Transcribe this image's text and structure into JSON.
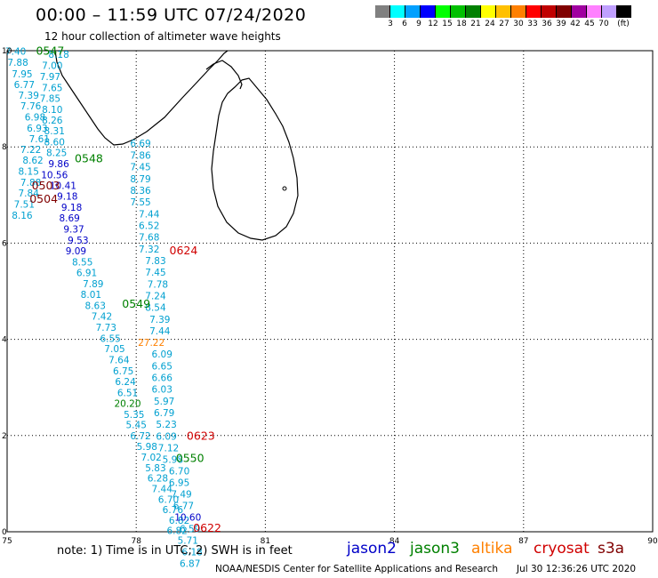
{
  "title": "00:00 – 11:59 UTC 07/24/2020",
  "subtitle": "12 hour collection of altimeter wave heights",
  "colorbar": {
    "unit": "(ft)",
    "levels": [
      "3",
      "6",
      "9",
      "12",
      "15",
      "18",
      "21",
      "24",
      "27",
      "30",
      "33",
      "36",
      "39",
      "42",
      "45",
      "70"
    ],
    "colors": [
      "#808080",
      "#00ffff",
      "#00a0ff",
      "#0000ff",
      "#00ff00",
      "#00c000",
      "#008000",
      "#ffff00",
      "#ffc000",
      "#ff8000",
      "#ff0000",
      "#c00000",
      "#800000",
      "#a000a0",
      "#ff80ff",
      "#c0a0ff",
      "#000000"
    ]
  },
  "axes": {
    "x_ticks": [
      "75",
      "78",
      "81",
      "84",
      "87",
      "90"
    ],
    "y_ticks": [
      "10",
      "8",
      "6",
      "4",
      "2",
      "0"
    ],
    "xlim": [
      75,
      90
    ],
    "ylim": [
      0,
      10
    ]
  },
  "satellite_colors": {
    "jason2": "#0000c8",
    "jason3": "#008000",
    "altika": "#ff8000",
    "cryosat": "#d00000",
    "s3a": "#800000",
    "default": "#00a0d0"
  },
  "pass_times": [
    {
      "text": "0547",
      "lon": 76.0,
      "lat": 9.92,
      "sat": "jason3"
    },
    {
      "text": "0548",
      "lon": 76.9,
      "lat": 7.68,
      "sat": "jason3"
    },
    {
      "text": "0503",
      "lon": 75.9,
      "lat": 7.12,
      "sat": "s3a"
    },
    {
      "text": "0504",
      "lon": 75.85,
      "lat": 6.84,
      "sat": "s3a"
    },
    {
      "text": "0624",
      "lon": 79.1,
      "lat": 5.77,
      "sat": "cryosat"
    },
    {
      "text": "0549",
      "lon": 78.0,
      "lat": 4.66,
      "sat": "jason3"
    },
    {
      "text": "0623",
      "lon": 79.5,
      "lat": 1.91,
      "sat": "cryosat"
    },
    {
      "text": "0550",
      "lon": 79.25,
      "lat": 1.45,
      "sat": "jason3"
    },
    {
      "text": "0622",
      "lon": 79.65,
      "lat": 0.0,
      "sat": "cryosat"
    }
  ],
  "wave_heights": [
    {
      "v": "7.40",
      "lon": 75.2,
      "lat": 9.92,
      "sat": "default"
    },
    {
      "v": "7.88",
      "lon": 75.25,
      "lat": 9.69,
      "sat": "default"
    },
    {
      "v": "7.95",
      "lon": 75.35,
      "lat": 9.45,
      "sat": "default"
    },
    {
      "v": "6.77",
      "lon": 75.4,
      "lat": 9.22,
      "sat": "default"
    },
    {
      "v": "7.39",
      "lon": 75.5,
      "lat": 9.0,
      "sat": "default"
    },
    {
      "v": "7.76",
      "lon": 75.55,
      "lat": 8.78,
      "sat": "default"
    },
    {
      "v": "6.98",
      "lon": 75.65,
      "lat": 8.55,
      "sat": "default"
    },
    {
      "v": "6.93",
      "lon": 75.7,
      "lat": 8.32,
      "sat": "default"
    },
    {
      "v": "7.61",
      "lon": 75.75,
      "lat": 8.1,
      "sat": "default"
    },
    {
      "v": "7.22",
      "lon": 75.55,
      "lat": 7.87,
      "sat": "default"
    },
    {
      "v": "8.62",
      "lon": 75.6,
      "lat": 7.65,
      "sat": "default"
    },
    {
      "v": "8.15",
      "lon": 75.5,
      "lat": 7.42,
      "sat": "default"
    },
    {
      "v": "7.88",
      "lon": 75.55,
      "lat": 7.19,
      "sat": "default"
    },
    {
      "v": "7.84",
      "lon": 75.5,
      "lat": 6.97,
      "sat": "default"
    },
    {
      "v": "7.51",
      "lon": 75.4,
      "lat": 6.74,
      "sat": "default"
    },
    {
      "v": "8.16",
      "lon": 75.35,
      "lat": 6.51,
      "sat": "default"
    },
    {
      "v": "8.18",
      "lon": 76.2,
      "lat": 9.85,
      "sat": "default"
    },
    {
      "v": "7.00",
      "lon": 76.05,
      "lat": 9.62,
      "sat": "default"
    },
    {
      "v": "7.97",
      "lon": 76.0,
      "lat": 9.39,
      "sat": "default"
    },
    {
      "v": "7.65",
      "lon": 76.05,
      "lat": 9.16,
      "sat": "default"
    },
    {
      "v": "7.85",
      "lon": 76.0,
      "lat": 8.94,
      "sat": "default"
    },
    {
      "v": "8.10",
      "lon": 76.05,
      "lat": 8.71,
      "sat": "default"
    },
    {
      "v": "8.26",
      "lon": 76.05,
      "lat": 8.48,
      "sat": "default"
    },
    {
      "v": "8.31",
      "lon": 76.1,
      "lat": 8.26,
      "sat": "default"
    },
    {
      "v": "8.60",
      "lon": 76.1,
      "lat": 8.03,
      "sat": "default"
    },
    {
      "v": "8.25",
      "lon": 76.15,
      "lat": 7.81,
      "sat": "default"
    },
    {
      "v": "9.86",
      "lon": 76.2,
      "lat": 7.58,
      "sat": "jason2"
    },
    {
      "v": "10.56",
      "lon": 76.1,
      "lat": 7.35,
      "sat": "jason2"
    },
    {
      "v": "10.41",
      "lon": 76.3,
      "lat": 7.13,
      "sat": "jason2"
    },
    {
      "v": "9.18",
      "lon": 76.4,
      "lat": 6.9,
      "sat": "jason2"
    },
    {
      "v": "9.18",
      "lon": 76.5,
      "lat": 6.67,
      "sat": "jason2"
    },
    {
      "v": "8.69",
      "lon": 76.45,
      "lat": 6.45,
      "sat": "jason2"
    },
    {
      "v": "9.37",
      "lon": 76.55,
      "lat": 6.22,
      "sat": "jason2"
    },
    {
      "v": "9.53",
      "lon": 76.65,
      "lat": 5.99,
      "sat": "jason2"
    },
    {
      "v": "9.09",
      "lon": 76.6,
      "lat": 5.77,
      "sat": "jason2"
    },
    {
      "v": "8.55",
      "lon": 76.75,
      "lat": 5.54,
      "sat": "default"
    },
    {
      "v": "6.91",
      "lon": 76.85,
      "lat": 5.31,
      "sat": "default"
    },
    {
      "v": "7.89",
      "lon": 77.0,
      "lat": 5.08,
      "sat": "default"
    },
    {
      "v": "8.01",
      "lon": 76.95,
      "lat": 4.86,
      "sat": "default"
    },
    {
      "v": "8.63",
      "lon": 77.05,
      "lat": 4.63,
      "sat": "default"
    },
    {
      "v": "7.42",
      "lon": 77.2,
      "lat": 4.41,
      "sat": "default"
    },
    {
      "v": "7.73",
      "lon": 77.3,
      "lat": 4.18,
      "sat": "default"
    },
    {
      "v": "6.55",
      "lon": 77.4,
      "lat": 3.95,
      "sat": "default"
    },
    {
      "v": "7.05",
      "lon": 77.5,
      "lat": 3.73,
      "sat": "default"
    },
    {
      "v": "7.64",
      "lon": 77.6,
      "lat": 3.5,
      "sat": "default"
    },
    {
      "v": "6.75",
      "lon": 77.7,
      "lat": 3.27,
      "sat": "default"
    },
    {
      "v": "6.24",
      "lon": 77.75,
      "lat": 3.05,
      "sat": "default"
    },
    {
      "v": "6.51",
      "lon": 77.8,
      "lat": 2.82,
      "sat": "default"
    },
    {
      "v": "20.20",
      "lon": 77.8,
      "lat": 2.6,
      "sat": "jason3"
    },
    {
      "v": "5.35",
      "lon": 77.95,
      "lat": 2.37,
      "sat": "default"
    },
    {
      "v": "5.45",
      "lon": 78.0,
      "lat": 2.15,
      "sat": "default"
    },
    {
      "v": "6.72",
      "lon": 78.1,
      "lat": 1.92,
      "sat": "default"
    },
    {
      "v": "5.98",
      "lon": 78.25,
      "lat": 1.7,
      "sat": "default"
    },
    {
      "v": "7.02",
      "lon": 78.35,
      "lat": 1.48,
      "sat": "default"
    },
    {
      "v": "5.83",
      "lon": 78.45,
      "lat": 1.26,
      "sat": "default"
    },
    {
      "v": "6.28",
      "lon": 78.5,
      "lat": 1.04,
      "sat": "default"
    },
    {
      "v": "7.44",
      "lon": 78.6,
      "lat": 0.82,
      "sat": "default"
    },
    {
      "v": "6.70",
      "lon": 78.75,
      "lat": 0.6,
      "sat": "default"
    },
    {
      "v": "6.76",
      "lon": 78.85,
      "lat": 0.39,
      "sat": "default"
    },
    {
      "v": "6.82",
      "lon": 79.0,
      "lat": 0.17,
      "sat": "default"
    },
    {
      "v": "6.82",
      "lon": 78.95,
      "lat": -0.05,
      "sat": "default"
    },
    {
      "v": "6.69",
      "lon": 78.1,
      "lat": 8.0,
      "sat": "default"
    },
    {
      "v": "7.86",
      "lon": 78.1,
      "lat": 7.75,
      "sat": "default"
    },
    {
      "v": "7.45",
      "lon": 78.1,
      "lat": 7.51,
      "sat": "default"
    },
    {
      "v": "8.79",
      "lon": 78.1,
      "lat": 7.26,
      "sat": "default"
    },
    {
      "v": "8.36",
      "lon": 78.1,
      "lat": 7.02,
      "sat": "default"
    },
    {
      "v": "7.55",
      "lon": 78.1,
      "lat": 6.78,
      "sat": "default"
    },
    {
      "v": "7.44",
      "lon": 78.3,
      "lat": 6.53,
      "sat": "default"
    },
    {
      "v": "6.52",
      "lon": 78.3,
      "lat": 6.29,
      "sat": "default"
    },
    {
      "v": "7.68",
      "lon": 78.3,
      "lat": 6.05,
      "sat": "default"
    },
    {
      "v": "7.32",
      "lon": 78.3,
      "lat": 5.8,
      "sat": "default"
    },
    {
      "v": "7.83",
      "lon": 78.45,
      "lat": 5.56,
      "sat": "default"
    },
    {
      "v": "7.45",
      "lon": 78.45,
      "lat": 5.32,
      "sat": "default"
    },
    {
      "v": "7.78",
      "lon": 78.5,
      "lat": 5.07,
      "sat": "default"
    },
    {
      "v": "7.24",
      "lon": 78.45,
      "lat": 4.83,
      "sat": "default"
    },
    {
      "v": "8.54",
      "lon": 78.45,
      "lat": 4.59,
      "sat": "default"
    },
    {
      "v": "7.39",
      "lon": 78.55,
      "lat": 4.34,
      "sat": "default"
    },
    {
      "v": "7.44",
      "lon": 78.55,
      "lat": 4.1,
      "sat": "default"
    },
    {
      "v": "27.22",
      "lon": 78.35,
      "lat": 3.86,
      "sat": "altika"
    },
    {
      "v": "6.09",
      "lon": 78.6,
      "lat": 3.62,
      "sat": "default"
    },
    {
      "v": "6.65",
      "lon": 78.6,
      "lat": 3.37,
      "sat": "default"
    },
    {
      "v": "6.66",
      "lon": 78.6,
      "lat": 3.13,
      "sat": "default"
    },
    {
      "v": "6.03",
      "lon": 78.6,
      "lat": 2.89,
      "sat": "default"
    },
    {
      "v": "5.97",
      "lon": 78.65,
      "lat": 2.64,
      "sat": "default"
    },
    {
      "v": "6.79",
      "lon": 78.65,
      "lat": 2.4,
      "sat": "default"
    },
    {
      "v": "5.23",
      "lon": 78.7,
      "lat": 2.16,
      "sat": "default"
    },
    {
      "v": "6.09",
      "lon": 78.7,
      "lat": 1.91,
      "sat": "default"
    },
    {
      "v": "7.12",
      "lon": 78.75,
      "lat": 1.67,
      "sat": "default"
    },
    {
      "v": "5.98",
      "lon": 78.85,
      "lat": 1.43,
      "sat": "default"
    },
    {
      "v": "6.70",
      "lon": 79.0,
      "lat": 1.19,
      "sat": "default"
    },
    {
      "v": "6.95",
      "lon": 79.0,
      "lat": 0.95,
      "sat": "default"
    },
    {
      "v": "7.49",
      "lon": 79.05,
      "lat": 0.71,
      "sat": "default"
    },
    {
      "v": "6.77",
      "lon": 79.1,
      "lat": 0.47,
      "sat": "default"
    },
    {
      "v": "10.60",
      "lon": 79.2,
      "lat": 0.23,
      "sat": "jason2"
    },
    {
      "v": "6.59",
      "lon": 79.25,
      "lat": -0.01,
      "sat": "default"
    },
    {
      "v": "5.71",
      "lon": 79.2,
      "lat": -0.25,
      "sat": "default"
    },
    {
      "v": "6.18",
      "lon": 79.3,
      "lat": -0.49,
      "sat": "default"
    },
    {
      "v": "6.87",
      "lon": 79.25,
      "lat": -0.73,
      "sat": "default"
    }
  ],
  "footnote": "note: 1) Time is in UTC; 2) SWH is in feet",
  "legend": [
    {
      "label": "jason2",
      "color": "#0000c8"
    },
    {
      "label": "jason3",
      "color": "#008000"
    },
    {
      "label": "altika",
      "color": "#ff8000"
    },
    {
      "label": "cryosat",
      "color": "#d00000"
    },
    {
      "label": "s3a",
      "color": "#800000"
    }
  ],
  "credit": "NOAA/NESDIS Center for Satellite Applications and Research",
  "credit_time": "Jul 30 12:36:26 UTC 2020"
}
